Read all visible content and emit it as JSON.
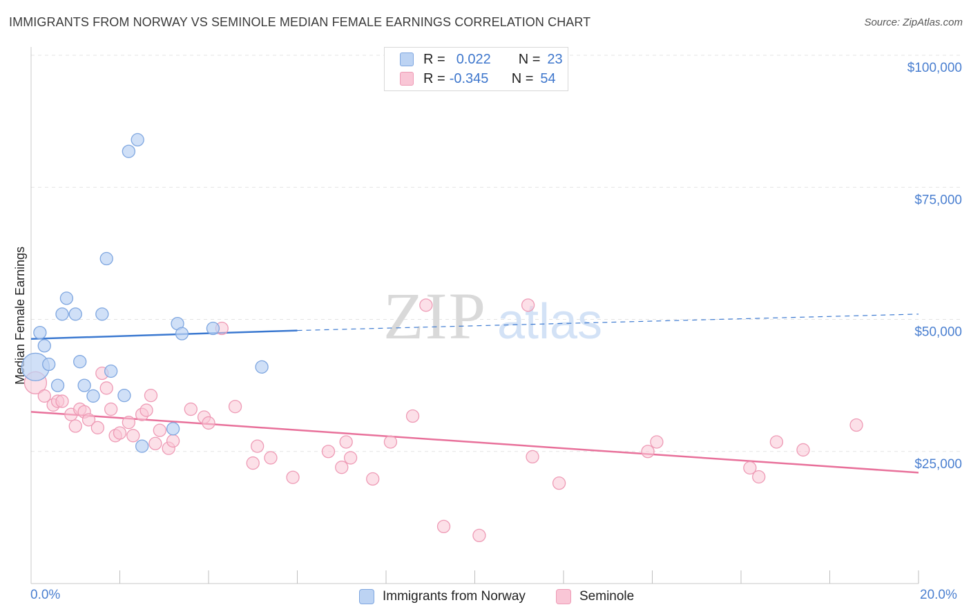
{
  "title": "IMMIGRANTS FROM NORWAY VS SEMINOLE MEDIAN FEMALE EARNINGS CORRELATION CHART",
  "source": "Source: ZipAtlas.com",
  "watermark": {
    "zip": "ZIP",
    "atlas": "atlas"
  },
  "legend": {
    "row1": {
      "r_label": "R =",
      "r_value": "0.022",
      "n_label": "N =",
      "n_value": "23"
    },
    "row2": {
      "r_label": "R =",
      "r_value": "-0.345",
      "n_label": "N =",
      "n_value": "54"
    }
  },
  "bottom_legend": {
    "series1": "Immigrants from Norway",
    "series2": "Seminole"
  },
  "x_axis": {
    "min_label": "0.0%",
    "max_label": "20.0%"
  },
  "colors": {
    "norway_fill": "#bcd3f3",
    "norway_stroke": "#7ea6e0",
    "norway_line": "#3a78d0",
    "seminole_fill": "#f9c6d6",
    "seminole_stroke": "#ee9ab5",
    "seminole_line": "#e8709a",
    "tick_text": "#4a7fd0",
    "grid": "#e3e3e3"
  },
  "chart_data": {
    "type": "scatter",
    "xlabel": "",
    "ylabel": "Median Female Earnings",
    "xlim": [
      0,
      20
    ],
    "ylim": [
      0,
      105000
    ],
    "x_unit": "%",
    "y_ticks": [
      {
        "value": 25000,
        "label": "$25,000"
      },
      {
        "value": 50000,
        "label": "$50,000"
      },
      {
        "value": 75000,
        "label": "$75,000"
      },
      {
        "value": 100000,
        "label": "$100,000"
      }
    ],
    "grid": "horizontal dashed",
    "legend": "top-center",
    "series": [
      {
        "name": "Immigrants from Norway",
        "r": 0.022,
        "n": 23,
        "trend": {
          "x": [
            0,
            6
          ],
          "y": [
            46300,
            47900
          ],
          "dashed_extension_to": [
            20,
            51000
          ]
        },
        "points": [
          [
            0.1,
            41000
          ],
          [
            0.2,
            47500
          ],
          [
            0.3,
            45000
          ],
          [
            0.4,
            41500
          ],
          [
            0.6,
            37500
          ],
          [
            0.7,
            51000
          ],
          [
            0.8,
            54000
          ],
          [
            1.0,
            51000
          ],
          [
            1.1,
            42000
          ],
          [
            1.2,
            37500
          ],
          [
            1.4,
            35500
          ],
          [
            1.6,
            51000
          ],
          [
            1.7,
            61500
          ],
          [
            1.8,
            40200
          ],
          [
            2.1,
            35600
          ],
          [
            2.2,
            81800
          ],
          [
            2.4,
            84000
          ],
          [
            2.5,
            26000
          ],
          [
            3.2,
            29300
          ],
          [
            3.3,
            49200
          ],
          [
            3.4,
            47300
          ],
          [
            4.1,
            48300
          ],
          [
            5.2,
            41000
          ]
        ]
      },
      {
        "name": "Seminole",
        "r": -0.345,
        "n": 54,
        "trend": {
          "x": [
            0,
            20
          ],
          "y": [
            32500,
            21000
          ]
        },
        "points": [
          [
            0.1,
            38000
          ],
          [
            0.3,
            35500
          ],
          [
            0.5,
            33800
          ],
          [
            0.6,
            34500
          ],
          [
            0.7,
            34500
          ],
          [
            0.9,
            32000
          ],
          [
            1.0,
            29800
          ],
          [
            1.1,
            33000
          ],
          [
            1.2,
            32500
          ],
          [
            1.3,
            31000
          ],
          [
            1.5,
            29500
          ],
          [
            1.6,
            39800
          ],
          [
            1.7,
            37000
          ],
          [
            1.8,
            33000
          ],
          [
            1.9,
            28000
          ],
          [
            2.0,
            28500
          ],
          [
            2.2,
            30500
          ],
          [
            2.3,
            28000
          ],
          [
            2.5,
            32000
          ],
          [
            2.6,
            32800
          ],
          [
            2.7,
            35600
          ],
          [
            2.8,
            26500
          ],
          [
            2.9,
            29000
          ],
          [
            3.1,
            25600
          ],
          [
            3.2,
            27000
          ],
          [
            3.6,
            33000
          ],
          [
            3.9,
            31500
          ],
          [
            4.0,
            30400
          ],
          [
            4.3,
            48300
          ],
          [
            4.6,
            33500
          ],
          [
            5.0,
            22800
          ],
          [
            5.1,
            26000
          ],
          [
            5.4,
            23800
          ],
          [
            5.9,
            20100
          ],
          [
            6.7,
            25000
          ],
          [
            7.0,
            22000
          ],
          [
            7.1,
            26800
          ],
          [
            7.2,
            23800
          ],
          [
            7.7,
            19800
          ],
          [
            8.1,
            26800
          ],
          [
            8.6,
            31700
          ],
          [
            8.9,
            52700
          ],
          [
            9.3,
            10800
          ],
          [
            10.1,
            9100
          ],
          [
            11.2,
            52700
          ],
          [
            11.3,
            24000
          ],
          [
            11.9,
            19000
          ],
          [
            13.9,
            25000
          ],
          [
            14.1,
            26800
          ],
          [
            16.2,
            21900
          ],
          [
            16.4,
            20200
          ],
          [
            16.8,
            26800
          ],
          [
            17.4,
            25300
          ],
          [
            18.6,
            30000
          ]
        ]
      }
    ]
  }
}
